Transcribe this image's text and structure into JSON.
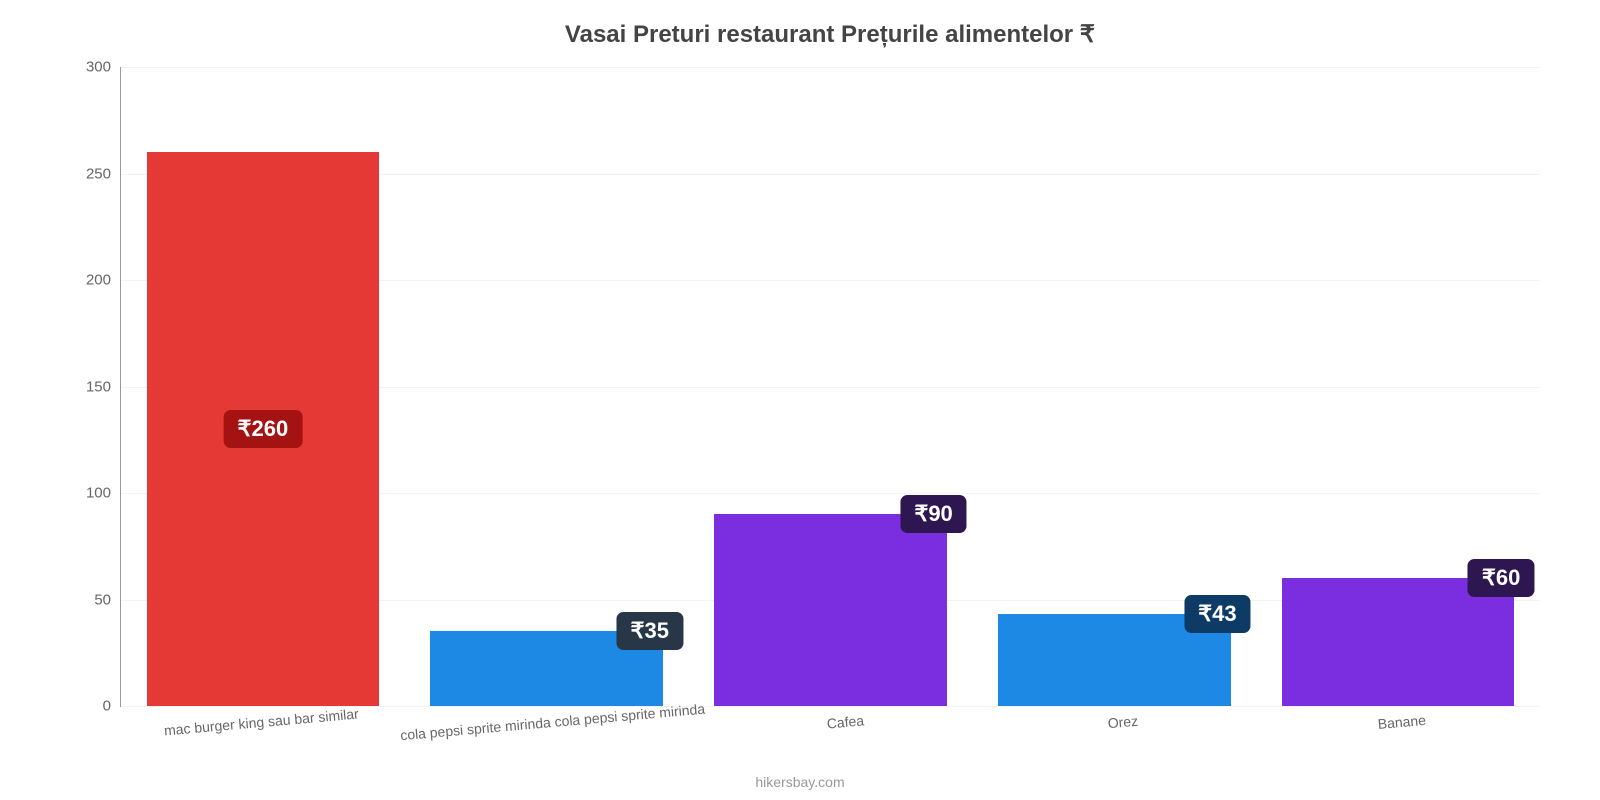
{
  "chart": {
    "type": "bar",
    "title": "Vasai Preturi restaurant Prețurile alimentelor ₹",
    "title_fontsize": 24,
    "title_color": "#444444",
    "background_color": "#ffffff",
    "grid_color": "#f3f3f3",
    "axis_line_color": "#999999",
    "ylim": [
      0,
      300
    ],
    "yticks": [
      0,
      50,
      100,
      150,
      200,
      250,
      300
    ],
    "ytick_fontsize": 15,
    "ytick_color": "#666666",
    "bar_width_ratio": 0.82,
    "categories": [
      "mac burger king sau bar similar",
      "cola pepsi sprite mirinda cola pepsi sprite mirinda",
      "Cafea",
      "Orez",
      "Banane"
    ],
    "values": [
      260,
      35,
      90,
      43,
      60
    ],
    "value_labels": [
      "₹260",
      "₹35",
      "₹90",
      "₹43",
      "₹60"
    ],
    "bar_colors": [
      "#e53935",
      "#1e88e5",
      "#7b2de0",
      "#1e88e5",
      "#7b2de0"
    ],
    "label_bg_colors": [
      "#a51212",
      "#283747",
      "#2e1750",
      "#0d3b66",
      "#2e1750"
    ],
    "label_positions": [
      "middle",
      "top",
      "top",
      "top",
      "top"
    ],
    "label_fontsize": 22,
    "label_text_color": "#ffffff",
    "xlabel_fontsize": 14,
    "xlabel_color": "#666666",
    "xlabel_rotation_deg": -5,
    "attribution": "hikersbay.com",
    "attribution_color": "#999999"
  }
}
